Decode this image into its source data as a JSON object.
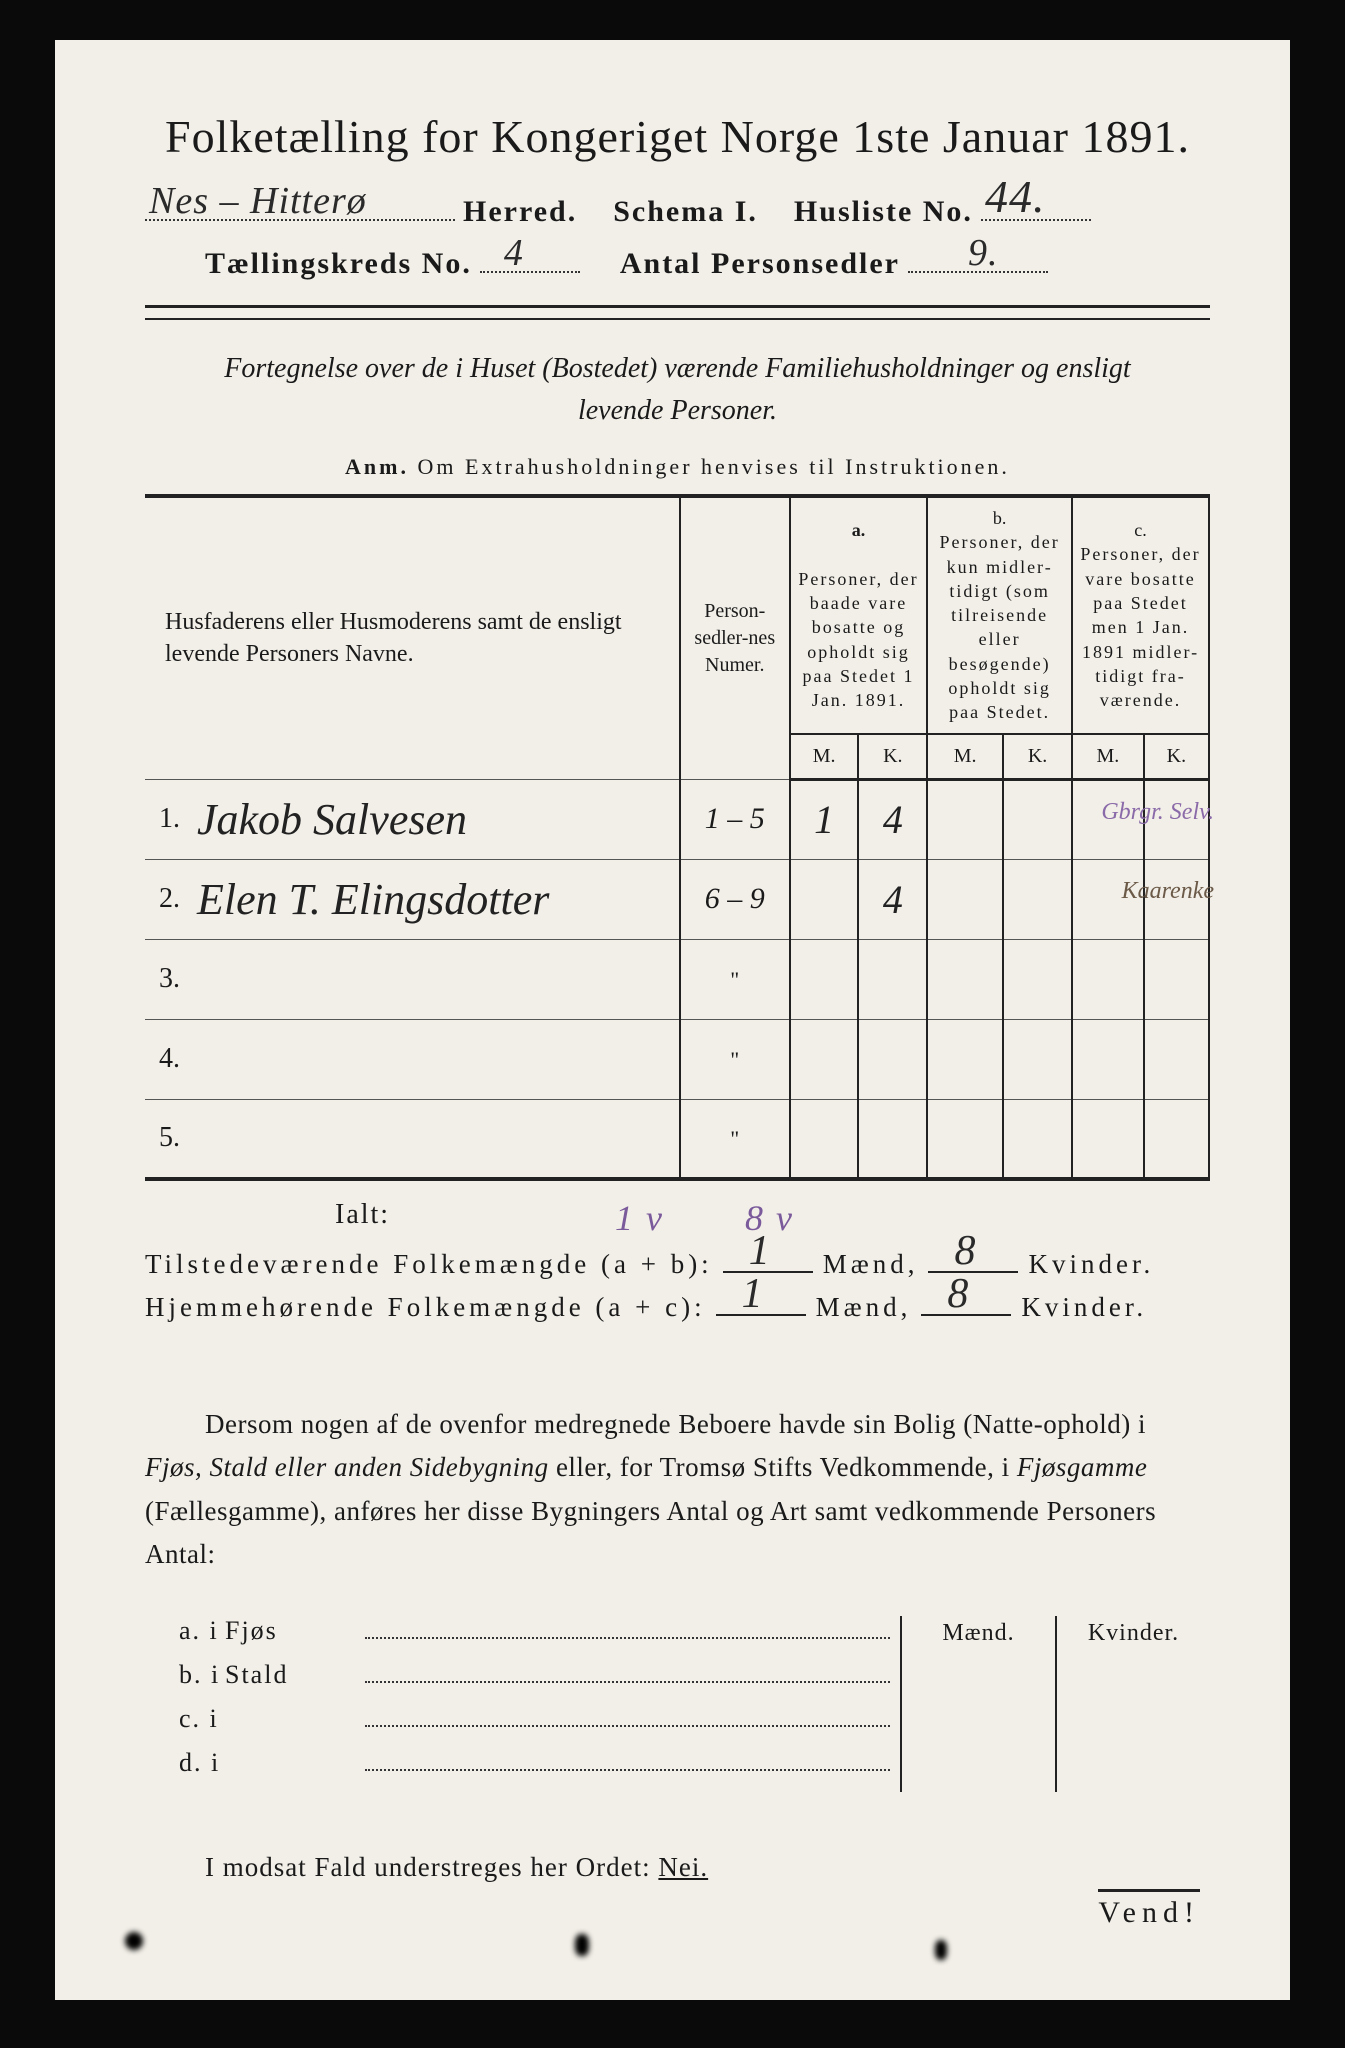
{
  "title": "Folketælling for Kongeriget Norge 1ste Januar 1891.",
  "header": {
    "herred_hw": "Nes – Hitterø",
    "herred_label": "Herred.",
    "schema_label": "Schema I.",
    "husliste_label": "Husliste No.",
    "husliste_hw": "44.",
    "kreds_label": "Tællingskreds No.",
    "kreds_hw": "4",
    "antal_label": "Antal Personsedler",
    "antal_hw": "9."
  },
  "subtitle_italic_1": "Fortegnelse over de i Huset (Bostedet) værende Familiehusholdninger og ensligt",
  "subtitle_italic_2": "levende Personer.",
  "anm_bold": "Anm.",
  "anm_rest": "Om Extrahusholdninger henvises til Instruktionen.",
  "columns": {
    "names": "Husfaderens eller Husmoderens samt de ensligt levende Personers Navne.",
    "names_samt_italic": "samt",
    "sedler": "Person-sedler-nes Numer.",
    "a_head": "a.",
    "a_text": "Personer, der baade vare bosatte og opholdt sig paa Stedet 1 Jan. 1891.",
    "b_head": "b.",
    "b_text": "Personer, der kun midler-tidigt (som tilreisende eller besøgende) opholdt sig paa Stedet.",
    "c_head": "c.",
    "c_text": "Personer, der vare bosatte paa Stedet men 1 Jan. 1891 midler-tidigt fra-værende.",
    "M": "M.",
    "K": "K."
  },
  "rows": [
    {
      "n": "1.",
      "name": "Jakob Salvesen",
      "sedler": "1 – 5",
      "aM": "1",
      "aK": "4",
      "note": "Gbrgr. Selv.",
      "note_color": "#8a6aa8"
    },
    {
      "n": "2.",
      "name": "Elen T. Elingsdotter",
      "sedler": "6 – 9",
      "aM": "",
      "aK": "4",
      "note": "Kaarenke",
      "note_color": "#6b5a48"
    },
    {
      "n": "3.",
      "name": "",
      "sedler": "\"",
      "aM": "",
      "aK": "",
      "note": ""
    },
    {
      "n": "4.",
      "name": "",
      "sedler": "\"",
      "aM": "",
      "aK": "",
      "note": ""
    },
    {
      "n": "5.",
      "name": "",
      "sedler": "\"",
      "aM": "",
      "aK": "",
      "note": ""
    }
  ],
  "ialt": {
    "label": "Ialt:",
    "over_m": "1 v",
    "over_k": "8 v"
  },
  "sums": {
    "line1_label": "Tilstedeværende Folkemængde (a + b):",
    "line2_label": "Hjemmehørende Folkemængde (a + c):",
    "m1": "1",
    "k1": "8",
    "m2": "1",
    "k2": "8",
    "maend": "Mænd,",
    "kvinder": "Kvinder."
  },
  "para": {
    "t1": "Dersom nogen af de ovenfor medregnede Beboere havde sin Bolig (Natte-ophold) i ",
    "i1": "Fjøs, Stald eller anden Sidebygning",
    "t2": " eller, for Tromsø Stifts Vedkommende, i ",
    "i2": "Fjøsgamme",
    "t3": " (Fællesgamme), anføres her disse Bygningers Antal og Art samt vedkommende Personers Antal:"
  },
  "bygn": {
    "head_m": "Mænd.",
    "head_k": "Kvinder.",
    "rows": [
      {
        "l": "a.  i",
        "t": "Fjøs"
      },
      {
        "l": "b.  i",
        "t": "Stald"
      },
      {
        "l": "c.  i",
        "t": ""
      },
      {
        "l": "d.  i",
        "t": ""
      }
    ]
  },
  "nei_text_1": "I modsat Fald understreges her Ordet: ",
  "nei_text_2": "Nei.",
  "vend": "Vend!",
  "colors": {
    "paper": "#f2efe8",
    "ink": "#1a1a1a",
    "purple": "#7a5a9a"
  }
}
